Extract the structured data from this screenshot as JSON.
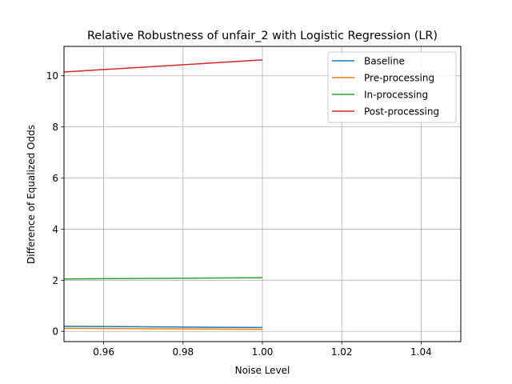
{
  "chart_data": {
    "type": "line",
    "title": "Relative Robustness of unfair_2 with Logistic Regression (LR)",
    "xlabel": "Noise Level",
    "ylabel": "Difference of Equalized Odds",
    "xlim": [
      0.95,
      1.05
    ],
    "ylim": [
      -0.4,
      11.15
    ],
    "xticks": [
      0.96,
      0.98,
      1.0,
      1.02,
      1.04
    ],
    "xtick_labels": [
      "0.96",
      "0.98",
      "1.00",
      "1.02",
      "1.04"
    ],
    "yticks": [
      0,
      2,
      4,
      6,
      8,
      10
    ],
    "ytick_labels": [
      "0",
      "2",
      "4",
      "6",
      "8",
      "10"
    ],
    "grid": true,
    "legend_position": "top-right",
    "x": [
      0.95,
      1.0
    ],
    "series": [
      {
        "name": "Baseline",
        "color": "#1f77b4",
        "values": [
          0.2,
          0.15
        ]
      },
      {
        "name": "Pre-processing",
        "color": "#ff7f0e",
        "values": [
          0.12,
          0.08
        ]
      },
      {
        "name": "In-processing",
        "color": "#2ca02c",
        "values": [
          2.05,
          2.1
        ]
      },
      {
        "name": "Post-processing",
        "color": "#d62728",
        "values": [
          10.15,
          10.62
        ]
      }
    ]
  }
}
